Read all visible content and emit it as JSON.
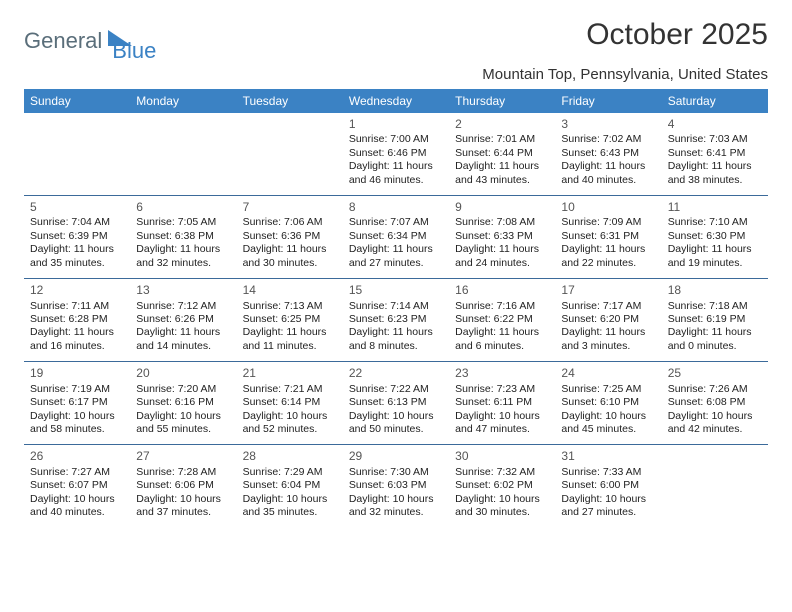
{
  "logo": {
    "text1": "General",
    "text2": "Blue"
  },
  "title": "October 2025",
  "location": "Mountain Top, Pennsylvania, United States",
  "colors": {
    "header_bg": "#3b82c4",
    "header_text": "#ffffff",
    "divider": "#3b6a9a",
    "logo_gray": "#5a6e7a",
    "logo_blue": "#3b82c4"
  },
  "daynames": [
    "Sunday",
    "Monday",
    "Tuesday",
    "Wednesday",
    "Thursday",
    "Friday",
    "Saturday"
  ],
  "weeks": [
    [
      {
        "n": "",
        "sr": "",
        "ss": "",
        "dl": ""
      },
      {
        "n": "",
        "sr": "",
        "ss": "",
        "dl": ""
      },
      {
        "n": "",
        "sr": "",
        "ss": "",
        "dl": ""
      },
      {
        "n": "1",
        "sr": "Sunrise: 7:00 AM",
        "ss": "Sunset: 6:46 PM",
        "dl": "Daylight: 11 hours and 46 minutes."
      },
      {
        "n": "2",
        "sr": "Sunrise: 7:01 AM",
        "ss": "Sunset: 6:44 PM",
        "dl": "Daylight: 11 hours and 43 minutes."
      },
      {
        "n": "3",
        "sr": "Sunrise: 7:02 AM",
        "ss": "Sunset: 6:43 PM",
        "dl": "Daylight: 11 hours and 40 minutes."
      },
      {
        "n": "4",
        "sr": "Sunrise: 7:03 AM",
        "ss": "Sunset: 6:41 PM",
        "dl": "Daylight: 11 hours and 38 minutes."
      }
    ],
    [
      {
        "n": "5",
        "sr": "Sunrise: 7:04 AM",
        "ss": "Sunset: 6:39 PM",
        "dl": "Daylight: 11 hours and 35 minutes."
      },
      {
        "n": "6",
        "sr": "Sunrise: 7:05 AM",
        "ss": "Sunset: 6:38 PM",
        "dl": "Daylight: 11 hours and 32 minutes."
      },
      {
        "n": "7",
        "sr": "Sunrise: 7:06 AM",
        "ss": "Sunset: 6:36 PM",
        "dl": "Daylight: 11 hours and 30 minutes."
      },
      {
        "n": "8",
        "sr": "Sunrise: 7:07 AM",
        "ss": "Sunset: 6:34 PM",
        "dl": "Daylight: 11 hours and 27 minutes."
      },
      {
        "n": "9",
        "sr": "Sunrise: 7:08 AM",
        "ss": "Sunset: 6:33 PM",
        "dl": "Daylight: 11 hours and 24 minutes."
      },
      {
        "n": "10",
        "sr": "Sunrise: 7:09 AM",
        "ss": "Sunset: 6:31 PM",
        "dl": "Daylight: 11 hours and 22 minutes."
      },
      {
        "n": "11",
        "sr": "Sunrise: 7:10 AM",
        "ss": "Sunset: 6:30 PM",
        "dl": "Daylight: 11 hours and 19 minutes."
      }
    ],
    [
      {
        "n": "12",
        "sr": "Sunrise: 7:11 AM",
        "ss": "Sunset: 6:28 PM",
        "dl": "Daylight: 11 hours and 16 minutes."
      },
      {
        "n": "13",
        "sr": "Sunrise: 7:12 AM",
        "ss": "Sunset: 6:26 PM",
        "dl": "Daylight: 11 hours and 14 minutes."
      },
      {
        "n": "14",
        "sr": "Sunrise: 7:13 AM",
        "ss": "Sunset: 6:25 PM",
        "dl": "Daylight: 11 hours and 11 minutes."
      },
      {
        "n": "15",
        "sr": "Sunrise: 7:14 AM",
        "ss": "Sunset: 6:23 PM",
        "dl": "Daylight: 11 hours and 8 minutes."
      },
      {
        "n": "16",
        "sr": "Sunrise: 7:16 AM",
        "ss": "Sunset: 6:22 PM",
        "dl": "Daylight: 11 hours and 6 minutes."
      },
      {
        "n": "17",
        "sr": "Sunrise: 7:17 AM",
        "ss": "Sunset: 6:20 PM",
        "dl": "Daylight: 11 hours and 3 minutes."
      },
      {
        "n": "18",
        "sr": "Sunrise: 7:18 AM",
        "ss": "Sunset: 6:19 PM",
        "dl": "Daylight: 11 hours and 0 minutes."
      }
    ],
    [
      {
        "n": "19",
        "sr": "Sunrise: 7:19 AM",
        "ss": "Sunset: 6:17 PM",
        "dl": "Daylight: 10 hours and 58 minutes."
      },
      {
        "n": "20",
        "sr": "Sunrise: 7:20 AM",
        "ss": "Sunset: 6:16 PM",
        "dl": "Daylight: 10 hours and 55 minutes."
      },
      {
        "n": "21",
        "sr": "Sunrise: 7:21 AM",
        "ss": "Sunset: 6:14 PM",
        "dl": "Daylight: 10 hours and 52 minutes."
      },
      {
        "n": "22",
        "sr": "Sunrise: 7:22 AM",
        "ss": "Sunset: 6:13 PM",
        "dl": "Daylight: 10 hours and 50 minutes."
      },
      {
        "n": "23",
        "sr": "Sunrise: 7:23 AM",
        "ss": "Sunset: 6:11 PM",
        "dl": "Daylight: 10 hours and 47 minutes."
      },
      {
        "n": "24",
        "sr": "Sunrise: 7:25 AM",
        "ss": "Sunset: 6:10 PM",
        "dl": "Daylight: 10 hours and 45 minutes."
      },
      {
        "n": "25",
        "sr": "Sunrise: 7:26 AM",
        "ss": "Sunset: 6:08 PM",
        "dl": "Daylight: 10 hours and 42 minutes."
      }
    ],
    [
      {
        "n": "26",
        "sr": "Sunrise: 7:27 AM",
        "ss": "Sunset: 6:07 PM",
        "dl": "Daylight: 10 hours and 40 minutes."
      },
      {
        "n": "27",
        "sr": "Sunrise: 7:28 AM",
        "ss": "Sunset: 6:06 PM",
        "dl": "Daylight: 10 hours and 37 minutes."
      },
      {
        "n": "28",
        "sr": "Sunrise: 7:29 AM",
        "ss": "Sunset: 6:04 PM",
        "dl": "Daylight: 10 hours and 35 minutes."
      },
      {
        "n": "29",
        "sr": "Sunrise: 7:30 AM",
        "ss": "Sunset: 6:03 PM",
        "dl": "Daylight: 10 hours and 32 minutes."
      },
      {
        "n": "30",
        "sr": "Sunrise: 7:32 AM",
        "ss": "Sunset: 6:02 PM",
        "dl": "Daylight: 10 hours and 30 minutes."
      },
      {
        "n": "31",
        "sr": "Sunrise: 7:33 AM",
        "ss": "Sunset: 6:00 PM",
        "dl": "Daylight: 10 hours and 27 minutes."
      },
      {
        "n": "",
        "sr": "",
        "ss": "",
        "dl": ""
      }
    ]
  ]
}
